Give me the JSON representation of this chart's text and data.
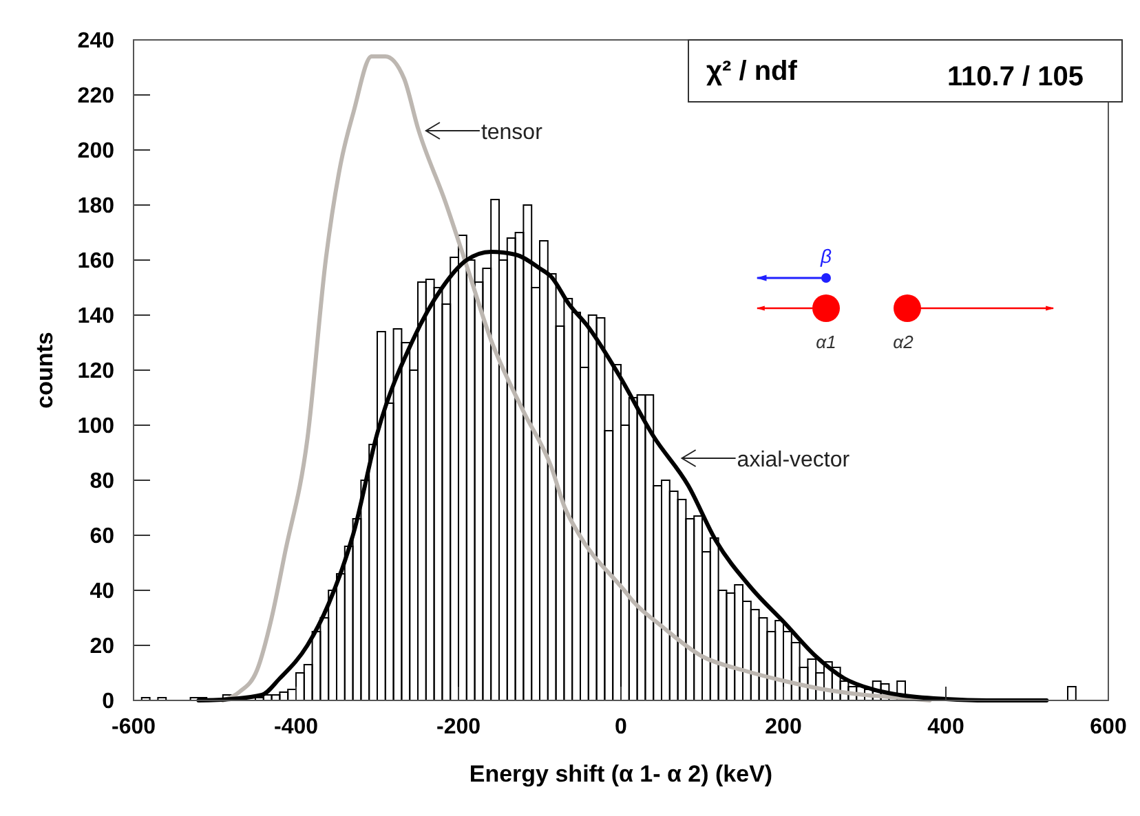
{
  "chart_data": {
    "type": "histogram",
    "xlabel": "Energy shift (α 1- α 2)  (keV)",
    "ylabel": "counts",
    "xlim": [
      -600,
      600
    ],
    "xticks": [
      -600,
      -400,
      -200,
      0,
      200,
      400,
      600
    ],
    "ylim": [
      0,
      240
    ],
    "yticks": [
      0,
      20,
      40,
      60,
      80,
      100,
      120,
      140,
      160,
      180,
      200,
      220,
      240
    ],
    "grid": false,
    "annotations": [
      "χ² / ndf",
      "110.7 / 105",
      "β",
      "α1",
      "α2",
      {
        "text": "tensor",
        "x": -245,
        "y": 207
      },
      {
        "text": "axial-vector",
        "x": 70,
        "y": 88
      }
    ],
    "series": [
      {
        "color": "#000000",
        "bins": [
          -600,
          -590,
          -580,
          -570,
          -560,
          -550,
          -540,
          -530,
          -520,
          -510,
          -500,
          -490,
          -480,
          -470,
          -460,
          -450,
          -440,
          -430,
          -420,
          -410,
          -400,
          -390,
          -380,
          -370,
          -360,
          -350,
          -340,
          -330,
          -320,
          -310,
          -300,
          -290,
          -280,
          -270,
          -260,
          -250,
          -240,
          -230,
          -220,
          -210,
          -200,
          -190,
          -180,
          -170,
          -160,
          -150,
          -140,
          -130,
          -120,
          -110,
          -100,
          -90,
          -80,
          -70,
          -60,
          -50,
          -40,
          -30,
          -20,
          -10,
          0,
          10,
          20,
          30,
          40,
          50,
          60,
          70,
          80,
          90,
          100,
          110,
          120,
          130,
          140,
          150,
          160,
          170,
          180,
          190,
          200,
          210,
          220,
          230,
          240,
          250,
          260,
          270,
          280,
          290,
          300,
          310,
          320,
          330,
          340,
          350,
          360,
          370,
          380,
          390,
          400,
          410,
          420,
          430,
          440,
          450,
          460,
          470,
          480,
          490,
          500,
          510,
          520,
          530,
          540,
          550,
          560,
          570,
          580,
          590,
          600
        ],
        "values": [
          0,
          1,
          0,
          1,
          0,
          0,
          0,
          1,
          1,
          0,
          0,
          2,
          0,
          null,
          0,
          1,
          2,
          2,
          3,
          4,
          10,
          13,
          25,
          30,
          40,
          46,
          56,
          66,
          80,
          93,
          134,
          108,
          135,
          130,
          120,
          152,
          153,
          150,
          144,
          161,
          169,
          160,
          152,
          157,
          182,
          160,
          168,
          170,
          180,
          150,
          167,
          155,
          136,
          146,
          141,
          121,
          140,
          139,
          98,
          122,
          100,
          110,
          111,
          111,
          78,
          80,
          76,
          73,
          66,
          67,
          54,
          59,
          40,
          39,
          42,
          36,
          33,
          30,
          25,
          29,
          25,
          21,
          12,
          15,
          10,
          14,
          12,
          7,
          5,
          5,
          4,
          7,
          6,
          null,
          7,
          0,
          0,
          0,
          0,
          0,
          0,
          0,
          0,
          0,
          0,
          0,
          0,
          0,
          0,
          0,
          0,
          0,
          0,
          0,
          0,
          5,
          0,
          0,
          0,
          0
        ]
      },
      {
        "type": "line",
        "color": "#bdb7b1",
        "x": [
          -490,
          -470,
          -448,
          -430,
          -414,
          -386,
          -363,
          -345,
          -329,
          -307,
          -290,
          -267,
          -250,
          -216,
          -190,
          -160,
          -120,
          -86,
          -69,
          -53,
          4,
          15,
          50,
          100,
          150,
          202,
          250,
          300,
          343,
          380
        ],
        "values": [
          0,
          3,
          11,
          30,
          53,
          95,
          161,
          195,
          214,
          234,
          234,
          226,
          208,
          181,
          158,
          131,
          105,
          85,
          70,
          61,
          40,
          36,
          27,
          16,
          11,
          7,
          4,
          2,
          1,
          0
        ]
      },
      {
        "type": "line",
        "color": "#000000",
        "x": [
          -520,
          -480,
          -442,
          -420,
          -386,
          -360,
          -329,
          -300,
          -256,
          -220,
          -190,
          -160,
          -130,
          -100,
          -86,
          -64,
          -41,
          -2,
          40,
          83,
          117,
          160,
          202,
          240,
          275,
          310,
          343,
          400,
          450,
          524
        ],
        "values": [
          0,
          0.5,
          2,
          8,
          20,
          35,
          61,
          97,
          131,
          150,
          160,
          163,
          162,
          157,
          154,
          144,
          136,
          118,
          96,
          78,
          58,
          41,
          28,
          16,
          8,
          4,
          2,
          0.5,
          0,
          0
        ]
      }
    ]
  }
}
